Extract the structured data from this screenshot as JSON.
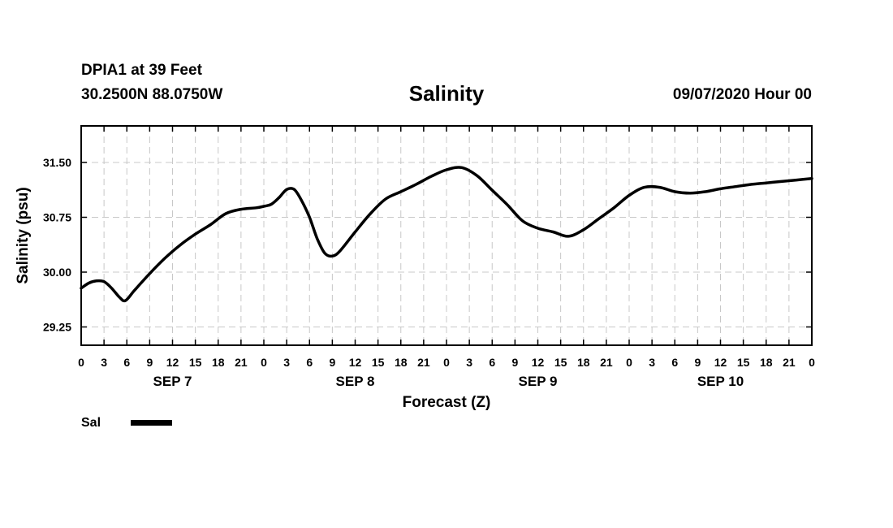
{
  "header": {
    "station": "DPIA1 at 39 Feet",
    "coords": "30.2500N 88.0750W",
    "title": "Salinity",
    "datetime": "09/07/2020 Hour 00"
  },
  "chart_data": {
    "type": "line",
    "title": "Salinity",
    "xlabel": "Forecast (Z)",
    "ylabel": "Salinity (psu)",
    "xlim": [
      0,
      96
    ],
    "ylim": [
      29.0,
      32.0
    ],
    "yticks": [
      29.25,
      30.0,
      30.75,
      31.5
    ],
    "ytick_labels": [
      "29.25",
      "30.00",
      "30.75",
      "31.50"
    ],
    "xticks": [
      0,
      3,
      6,
      9,
      12,
      15,
      18,
      21,
      24,
      27,
      30,
      33,
      36,
      39,
      42,
      45,
      48,
      51,
      54,
      57,
      60,
      63,
      66,
      69,
      72,
      75,
      78,
      81,
      84,
      87,
      90,
      93,
      96
    ],
    "xtick_labels": [
      "0",
      "3",
      "6",
      "9",
      "12",
      "15",
      "18",
      "21",
      "0",
      "3",
      "6",
      "9",
      "12",
      "15",
      "18",
      "21",
      "0",
      "3",
      "6",
      "9",
      "12",
      "15",
      "18",
      "21",
      "0",
      "3",
      "6",
      "9",
      "12",
      "15",
      "18",
      "21",
      "0"
    ],
    "day_labels": [
      {
        "label": "SEP 7",
        "hour": 12
      },
      {
        "label": "SEP 8",
        "hour": 36
      },
      {
        "label": "SEP 9",
        "hour": 60
      },
      {
        "label": "SEP 10",
        "hour": 84
      }
    ],
    "grid": true,
    "legend": "bottom-left",
    "series": [
      {
        "name": "Sal",
        "color": "#000000",
        "x": [
          0,
          1,
          2,
          3,
          4,
          5,
          5.8,
          7,
          9,
          11,
          13,
          15,
          17,
          19,
          21,
          23,
          24,
          25,
          26,
          27,
          28,
          29,
          30,
          31,
          32,
          33,
          34,
          36,
          38,
          40,
          42,
          44,
          46,
          48,
          50,
          52,
          54,
          56,
          58,
          60,
          62,
          64,
          66,
          68,
          70,
          72,
          74,
          76,
          78,
          80,
          82,
          84,
          86,
          88,
          90,
          92,
          94,
          96
        ],
        "values": [
          29.78,
          29.85,
          29.88,
          29.87,
          29.78,
          29.66,
          29.61,
          29.75,
          29.98,
          30.19,
          30.37,
          30.52,
          30.65,
          30.8,
          30.86,
          30.88,
          30.9,
          30.93,
          31.02,
          31.13,
          31.13,
          30.97,
          30.75,
          30.46,
          30.26,
          30.22,
          30.29,
          30.55,
          30.8,
          31.0,
          31.1,
          31.2,
          31.31,
          31.4,
          31.43,
          31.32,
          31.12,
          30.92,
          30.7,
          30.6,
          30.55,
          30.49,
          30.58,
          30.73,
          30.88,
          31.05,
          31.16,
          31.16,
          31.1,
          31.08,
          31.1,
          31.14,
          31.17,
          31.2,
          31.22,
          31.24,
          31.26,
          31.28
        ]
      }
    ]
  }
}
